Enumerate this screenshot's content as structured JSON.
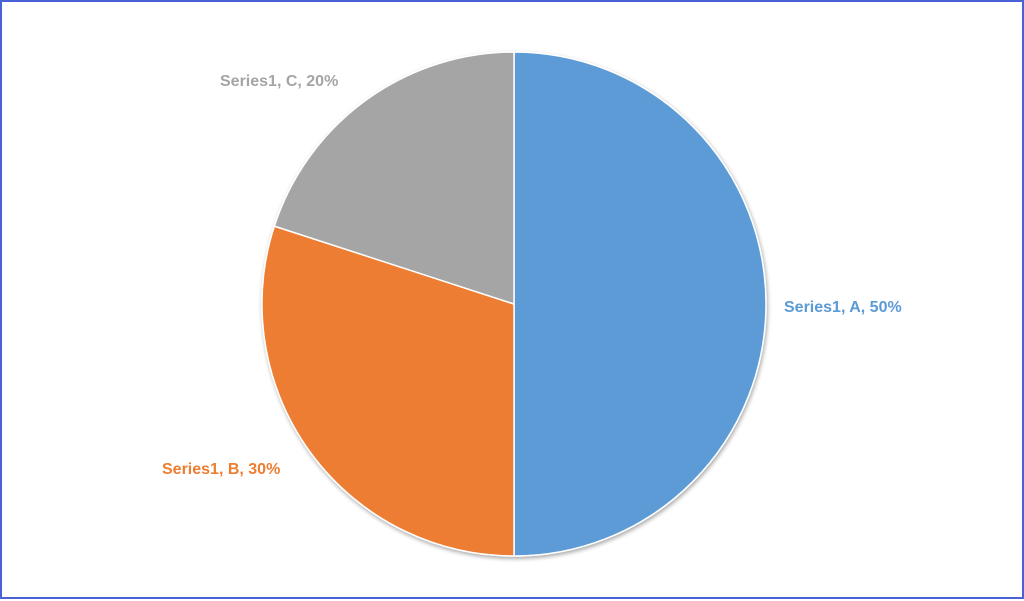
{
  "chart_data": {
    "type": "pie",
    "categories": [
      "A",
      "B",
      "C"
    ],
    "series": [
      {
        "name": "Series1",
        "values": [
          50,
          30,
          20
        ]
      }
    ],
    "data_labels": [
      "Series1, A, 50%",
      "Series1, B, 30%",
      "Series1, C, 20%"
    ],
    "colors": [
      "#5b9bd5",
      "#ed7d31",
      "#a5a5a5"
    ],
    "start_angle_deg": 0,
    "direction": "clockwise",
    "legend": "none",
    "title": ""
  },
  "frame_color": "#4a62d8"
}
